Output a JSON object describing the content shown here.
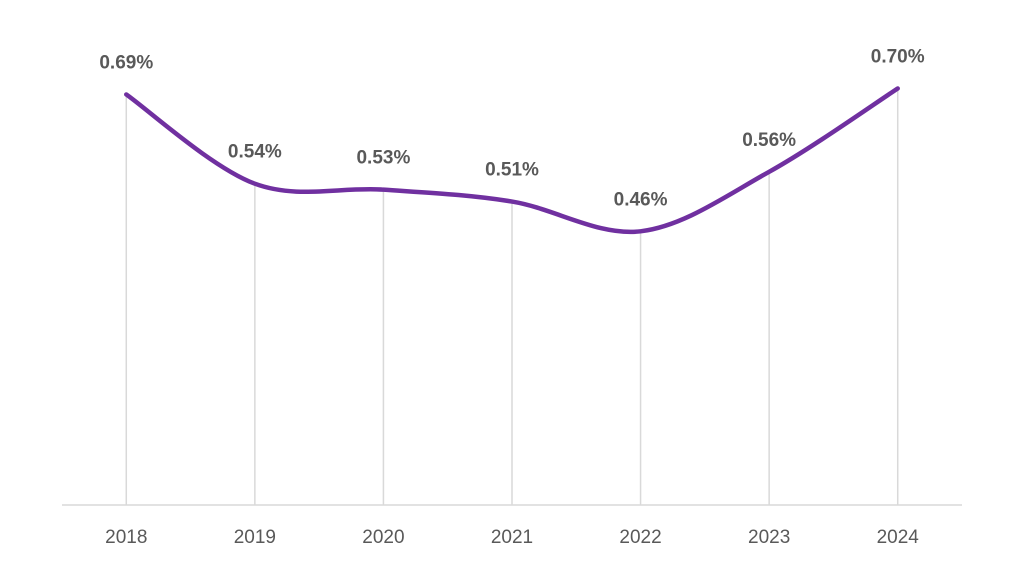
{
  "chart_data": {
    "type": "line",
    "title": "",
    "xlabel": "",
    "ylabel": "",
    "categories": [
      "2018",
      "2019",
      "2020",
      "2021",
      "2022",
      "2023",
      "2024"
    ],
    "series": [
      {
        "values": [
          0.69,
          0.54,
          0.53,
          0.51,
          0.46,
          0.56,
          0.7
        ],
        "labels": [
          "0.69%",
          "0.54%",
          "0.53%",
          "0.51%",
          "0.46%",
          "0.56%",
          "0.70%"
        ],
        "color": "#7030a0",
        "smooth": true
      }
    ],
    "ylim": [
      0,
      0.72
    ],
    "grid": "vertical",
    "legend": "none"
  }
}
